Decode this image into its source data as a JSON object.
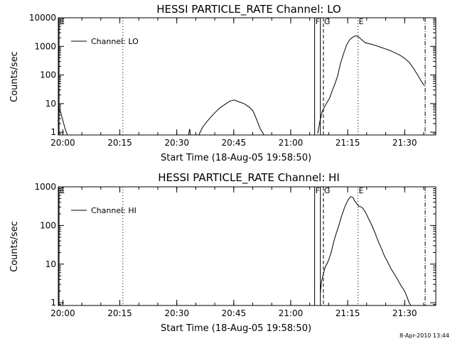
{
  "timestamp": "8-Apr-2010 13:44",
  "chart_data": [
    {
      "type": "line",
      "title": "HESSI PARTICLE_RATE Channel: LO",
      "xlabel": "Start Time (18-Aug-05 19:58:50)",
      "ylabel": "Counts/sec",
      "x_tick_labels": [
        "20:00",
        "20:15",
        "20:30",
        "20:45",
        "21:00",
        "21:15",
        "21:30"
      ],
      "x_tick_minutes": [
        1.2,
        16.2,
        31.2,
        46.2,
        61.2,
        76.2,
        91.2
      ],
      "xlim_minutes": [
        0,
        99.4
      ],
      "y_scale": "log",
      "ylim": [
        0.8,
        10000
      ],
      "y_tick_labels": [
        "1",
        "10",
        "100",
        "1000",
        "10000"
      ],
      "legend": {
        "position": "top-left",
        "entries": [
          "Channel: LO"
        ]
      },
      "markers": [
        {
          "label": "E",
          "t": 0.2,
          "style": "solid"
        },
        {
          "label": "F",
          "t": 67.5,
          "style": "solid"
        },
        {
          "label": "",
          "t": 69.0,
          "style": "solid"
        },
        {
          "label": "G",
          "t": 69.8,
          "style": "dashed"
        },
        {
          "label": "E",
          "t": 78.9,
          "style": "dotted"
        },
        {
          "label": "",
          "t": 17.0,
          "style": "dotted"
        },
        {
          "label": "",
          "t": 96.6,
          "style": "dashdot"
        }
      ],
      "series": [
        {
          "name": "Channel: LO",
          "segments": [
            {
              "t": [
                0.0,
                0.6,
                1.2,
                1.8,
                2.4
              ],
              "y": [
                8,
                5,
                2.6,
                1.3,
                0.8
              ]
            },
            {
              "t": [
                34.3,
                34.6,
                34.8
              ],
              "y": [
                0.8,
                1.3,
                0.8
              ]
            },
            {
              "t": [
                37.0,
                38.0,
                39.4,
                41.0,
                42.6,
                44.2,
                45.2,
                46.3,
                47.6,
                49.0,
                50.4,
                51.3,
                52.2,
                53.2,
                54.2
              ],
              "y": [
                0.8,
                1.5,
                2.6,
                4.5,
                7.2,
                10,
                12.2,
                13.3,
                11.5,
                9.8,
                7.3,
                5.5,
                2.8,
                1.3,
                0.8
              ]
            },
            {
              "t": [
                68.3,
                68.9,
                69.5,
                70.5,
                71.4,
                72.2,
                72.9,
                73.6,
                74.3,
                75.1,
                75.9,
                76.8,
                77.8,
                78.3,
                78.9,
                79.6,
                80.2,
                80.8,
                81.7,
                82.6,
                83.7,
                84.9,
                86.1,
                87.3,
                88.5,
                89.8,
                91.0,
                92.3,
                93.5,
                94.6,
                95.6,
                96.4
              ],
              "y": [
                0.9,
                2.5,
                5.4,
                9.5,
                15.2,
                30,
                51,
                98,
                252,
                553,
                1119,
                1760,
                2218,
                2330,
                2240,
                1856,
                1570,
                1350,
                1250,
                1175,
                1060,
                930,
                820,
                715,
                610,
                505,
                400,
                285,
                175,
                100,
                60,
                42
              ]
            }
          ]
        }
      ]
    },
    {
      "type": "line",
      "title": "HESSI PARTICLE_RATE Channel: HI",
      "xlabel": "Start Time (18-Aug-05 19:58:50)",
      "ylabel": "Counts/sec",
      "x_tick_labels": [
        "20:00",
        "20:15",
        "20:30",
        "20:45",
        "21:00",
        "21:15",
        "21:30"
      ],
      "x_tick_minutes": [
        1.2,
        16.2,
        31.2,
        46.2,
        61.2,
        76.2,
        91.2
      ],
      "xlim_minutes": [
        0,
        99.4
      ],
      "y_scale": "log",
      "ylim": [
        0.85,
        1000
      ],
      "y_tick_labels": [
        "1",
        "10",
        "100",
        "1000"
      ],
      "legend": {
        "position": "top-left",
        "entries": [
          "Channel: HI"
        ]
      },
      "markers": [
        {
          "label": "E",
          "t": 0.2,
          "style": "solid"
        },
        {
          "label": "F",
          "t": 67.5,
          "style": "solid"
        },
        {
          "label": "",
          "t": 69.0,
          "style": "solid"
        },
        {
          "label": "G",
          "t": 69.8,
          "style": "dashed"
        },
        {
          "label": "E",
          "t": 78.9,
          "style": "dotted"
        },
        {
          "label": "",
          "t": 17.0,
          "style": "dotted"
        },
        {
          "label": "",
          "t": 96.6,
          "style": "dashdot"
        }
      ],
      "series": [
        {
          "name": "Channel: HI",
          "segments": [
            {
              "t": [
                69.0,
                69.3,
                69.8,
                70.3,
                70.8,
                71.4,
                71.9,
                72.5,
                73.1,
                73.9,
                74.6,
                75.4,
                76.3,
                77.0,
                77.6,
                78.0,
                78.6,
                79.2,
                79.8,
                80.3,
                81.0,
                81.7,
                82.5,
                83.3,
                84.2,
                85.1,
                85.9,
                86.8,
                87.6,
                88.5,
                89.4,
                90.2,
                90.8,
                91.4,
                91.9,
                92.3,
                92.8
              ],
              "y": [
                1.8,
                3.5,
                5.6,
                8.5,
                10.4,
                14.5,
                21,
                37,
                59,
                103,
                176,
                297,
                460,
                561,
                528,
                436,
                360,
                312,
                302,
                270,
                210,
                150,
                104,
                68,
                40,
                25,
                16,
                11,
                7.6,
                5.5,
                3.9,
                2.8,
                2.3,
                1.8,
                1.35,
                1.05,
                0.85
              ]
            }
          ]
        }
      ]
    }
  ]
}
